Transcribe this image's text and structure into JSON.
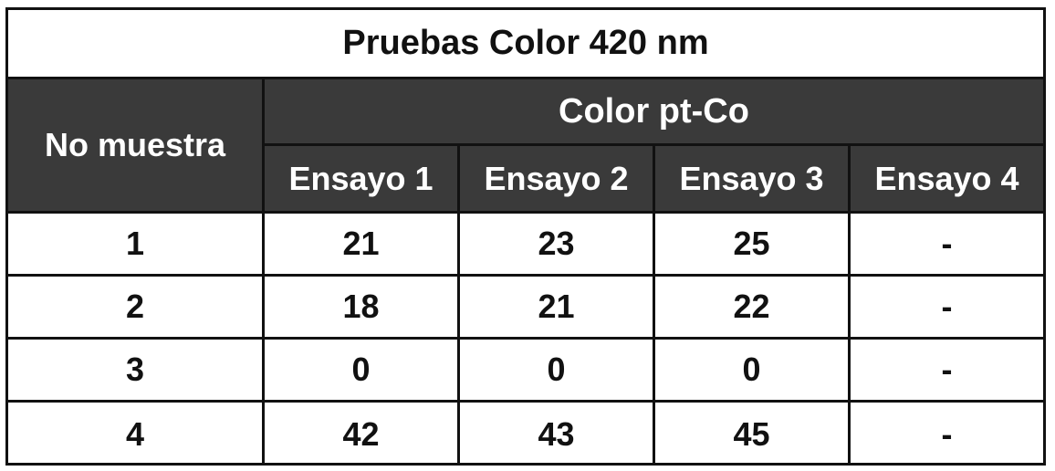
{
  "table": {
    "title": "Pruebas Color 420 nm",
    "sample_header": "No muestra",
    "group_header": "Color pt-Co",
    "columns": [
      "Ensayo 1",
      "Ensayo 2",
      "Ensayo 3",
      "Ensayo 4"
    ],
    "rows": [
      {
        "sample": "1",
        "values": [
          "21",
          "23",
          "25",
          "-"
        ]
      },
      {
        "sample": "2",
        "values": [
          "18",
          "21",
          "22",
          "-"
        ]
      },
      {
        "sample": "3",
        "values": [
          "0",
          "0",
          "0",
          "-"
        ]
      },
      {
        "sample": "4",
        "values": [
          "42",
          "43",
          "45",
          "-"
        ]
      }
    ]
  },
  "colors": {
    "header_bg": "#3a3a3a",
    "header_text": "#ffffff",
    "border": "#111111",
    "body_bg": "#ffffff"
  }
}
